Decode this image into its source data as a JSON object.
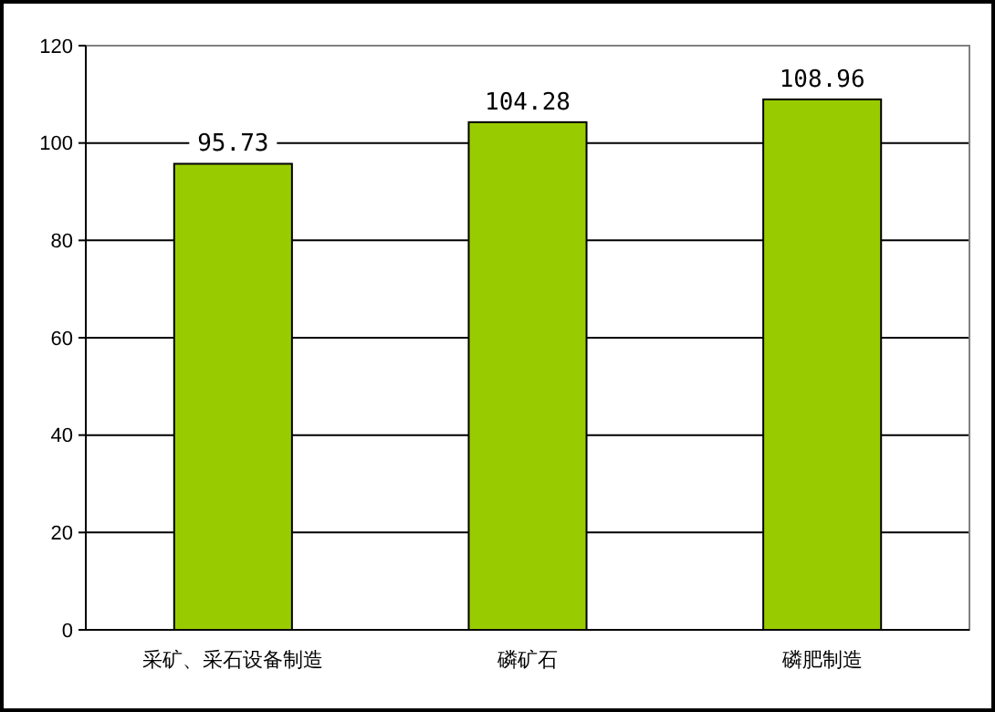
{
  "chart_data": {
    "type": "bar",
    "categories": [
      "采矿、采石设备制造",
      "磷矿石",
      "磷肥制造"
    ],
    "values": [
      95.73,
      104.28,
      108.96
    ],
    "color": "#99cc00",
    "ylim": [
      0,
      120
    ],
    "yticks": [
      0,
      20,
      40,
      60,
      80,
      100,
      120
    ],
    "grid": "y",
    "data_labels": true
  }
}
